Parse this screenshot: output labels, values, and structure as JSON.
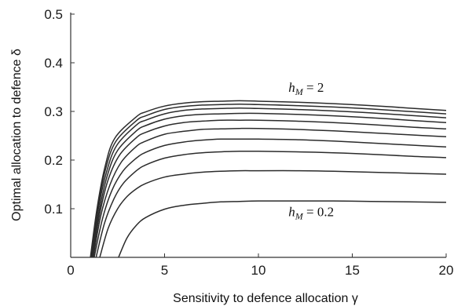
{
  "chart_data": {
    "type": "line",
    "title": "",
    "xlabel": "Sensitivity to defence allocation γ",
    "ylabel": "Optimal allocation to defence δ",
    "xlim": [
      0,
      20
    ],
    "ylim": [
      0,
      0.5
    ],
    "x_ticks": [
      "0",
      "5",
      "10",
      "15",
      "20"
    ],
    "y_ticks": [
      "0.1",
      "0.2",
      "0.3",
      "0.4",
      "0.5"
    ],
    "grid": false,
    "legend": "none",
    "annotations": [
      {
        "text_main": "h",
        "text_sub": "M",
        "text_rest": " = 2",
        "x": 11.6,
        "y": 0.34
      },
      {
        "text_main": "h",
        "text_sub": "M",
        "text_rest": " = 0.2",
        "x": 11.6,
        "y": 0.085
      }
    ],
    "series": [
      {
        "x": [
          2.55,
          3,
          3.5,
          4,
          5,
          6,
          7,
          8,
          9,
          10,
          12,
          14,
          16,
          18,
          20
        ],
        "values": [
          0,
          0.04,
          0.066,
          0.082,
          0.099,
          0.107,
          0.111,
          0.114,
          0.115,
          0.116,
          0.116,
          0.116,
          0.115,
          0.114,
          0.113
        ]
      },
      {
        "x": [
          1.55,
          2,
          2.5,
          3,
          3.5,
          4,
          5,
          6,
          7,
          8,
          9,
          10,
          12,
          14,
          16,
          18,
          20
        ],
        "values": [
          0,
          0.06,
          0.1,
          0.125,
          0.141,
          0.152,
          0.165,
          0.171,
          0.175,
          0.177,
          0.178,
          0.178,
          0.178,
          0.177,
          0.175,
          0.173,
          0.171
        ]
      },
      {
        "x": [
          1.35,
          1.8,
          2.3,
          2.8,
          3.5,
          4,
          5,
          6,
          7,
          8,
          9,
          10,
          12,
          14,
          16,
          18,
          20
        ],
        "values": [
          0,
          0.07,
          0.12,
          0.152,
          0.178,
          0.19,
          0.204,
          0.211,
          0.215,
          0.217,
          0.218,
          0.218,
          0.217,
          0.215,
          0.212,
          0.208,
          0.205
        ]
      },
      {
        "x": [
          1.25,
          1.7,
          2.2,
          2.8,
          3.5,
          4,
          5,
          6,
          7,
          8,
          9,
          10,
          12,
          14,
          16,
          18,
          20
        ],
        "values": [
          0,
          0.08,
          0.138,
          0.178,
          0.204,
          0.216,
          0.23,
          0.237,
          0.241,
          0.243,
          0.243,
          0.243,
          0.242,
          0.239,
          0.235,
          0.231,
          0.227
        ]
      },
      {
        "x": [
          1.2,
          1.6,
          2.1,
          2.7,
          3.5,
          4,
          5,
          6,
          7,
          8,
          9,
          10,
          12,
          14,
          16,
          18,
          20
        ],
        "values": [
          0,
          0.085,
          0.15,
          0.196,
          0.228,
          0.239,
          0.253,
          0.259,
          0.263,
          0.264,
          0.265,
          0.265,
          0.263,
          0.26,
          0.256,
          0.252,
          0.248
        ]
      },
      {
        "x": [
          1.15,
          1.55,
          2.0,
          2.6,
          3.5,
          4,
          5,
          6,
          7,
          8,
          9,
          10,
          12,
          14,
          16,
          18,
          20
        ],
        "values": [
          0,
          0.09,
          0.16,
          0.21,
          0.246,
          0.257,
          0.27,
          0.277,
          0.28,
          0.282,
          0.282,
          0.282,
          0.28,
          0.277,
          0.273,
          0.268,
          0.264
        ]
      },
      {
        "x": [
          1.12,
          1.5,
          1.95,
          2.5,
          3.5,
          4,
          5,
          6,
          7,
          8,
          9,
          10,
          12,
          14,
          16,
          18,
          20
        ],
        "values": [
          0,
          0.092,
          0.168,
          0.22,
          0.26,
          0.271,
          0.284,
          0.291,
          0.294,
          0.295,
          0.296,
          0.296,
          0.294,
          0.291,
          0.287,
          0.282,
          0.277
        ]
      },
      {
        "x": [
          1.1,
          1.45,
          1.9,
          2.45,
          3.5,
          4,
          5,
          6,
          7,
          8,
          9,
          10,
          12,
          14,
          16,
          18,
          20
        ],
        "values": [
          0,
          0.095,
          0.174,
          0.23,
          0.272,
          0.282,
          0.295,
          0.302,
          0.305,
          0.306,
          0.307,
          0.306,
          0.304,
          0.301,
          0.297,
          0.292,
          0.287
        ]
      },
      {
        "x": [
          1.08,
          1.42,
          1.85,
          2.4,
          3.5,
          4,
          5,
          6,
          7,
          8,
          9,
          10,
          12,
          14,
          16,
          18,
          20
        ],
        "values": [
          0,
          0.097,
          0.18,
          0.238,
          0.281,
          0.291,
          0.304,
          0.31,
          0.313,
          0.314,
          0.315,
          0.314,
          0.312,
          0.309,
          0.305,
          0.3,
          0.295
        ]
      },
      {
        "x": [
          1.05,
          1.4,
          1.82,
          2.35,
          3.5,
          4,
          5,
          6,
          7,
          8,
          9,
          10,
          12,
          14,
          16,
          18,
          20
        ],
        "values": [
          0,
          0.1,
          0.185,
          0.245,
          0.289,
          0.299,
          0.311,
          0.317,
          0.32,
          0.321,
          0.322,
          0.321,
          0.319,
          0.316,
          0.312,
          0.307,
          0.302
        ]
      }
    ]
  }
}
